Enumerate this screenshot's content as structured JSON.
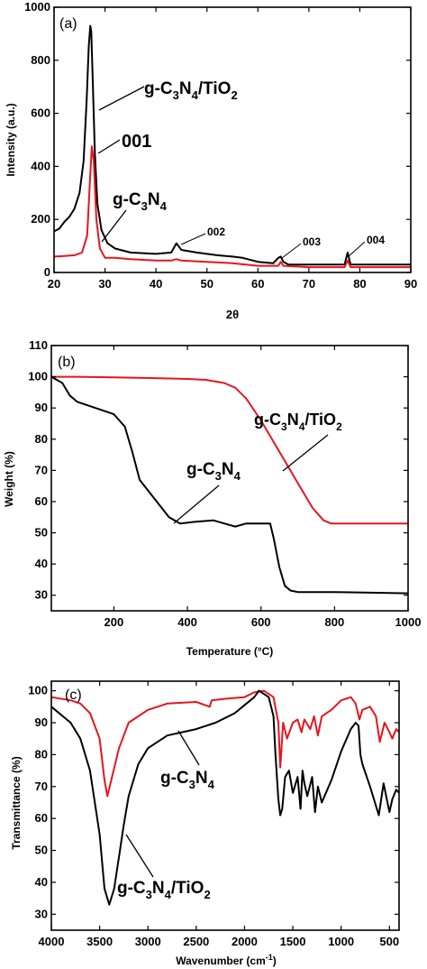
{
  "chart_data": [
    {
      "panel": "(a)",
      "type": "line",
      "xlabel": "2θ",
      "ylabel": "Intensity (a.u.)",
      "xlim": [
        20,
        90
      ],
      "ylim": [
        0,
        1000
      ],
      "xticks": [
        20,
        30,
        40,
        50,
        60,
        70,
        80,
        90
      ],
      "yticks": [
        0,
        200,
        400,
        600,
        800,
        1000
      ],
      "series": [
        {
          "name": "g-C3N4/TiO2",
          "color": "#000000",
          "x": [
            20,
            21,
            22,
            23,
            24,
            25,
            25.8,
            26.4,
            26.8,
            27.1,
            27.3,
            27.6,
            28.0,
            28.5,
            29.3,
            30.5,
            32,
            35,
            40,
            43,
            44,
            45,
            48,
            52,
            55,
            57,
            60,
            63,
            64,
            64.5,
            65,
            66,
            70,
            75,
            77,
            77.6,
            78.2,
            80,
            85,
            90
          ],
          "y": [
            155,
            165,
            190,
            210,
            240,
            300,
            420,
            650,
            850,
            930,
            910,
            720,
            450,
            260,
            160,
            110,
            90,
            75,
            70,
            75,
            110,
            85,
            75,
            65,
            60,
            55,
            40,
            35,
            55,
            60,
            40,
            30,
            30,
            30,
            30,
            75,
            30,
            30,
            30,
            30
          ]
        },
        {
          "name": "g-C3N4",
          "color": "#e8141e",
          "x": [
            20,
            22,
            24,
            25.5,
            26.5,
            27.0,
            27.4,
            27.8,
            28.3,
            29.0,
            30,
            32,
            35,
            40,
            43,
            44,
            45,
            50,
            55,
            60,
            64,
            64.5,
            65,
            70,
            77,
            77.6,
            78.2,
            80,
            85,
            90
          ],
          "y": [
            60,
            62,
            65,
            75,
            140,
            330,
            475,
            420,
            200,
            90,
            55,
            55,
            50,
            45,
            45,
            50,
            45,
            40,
            35,
            25,
            25,
            40,
            25,
            20,
            20,
            45,
            20,
            20,
            20,
            20
          ]
        }
      ],
      "annotations": [
        "g-C3N4/TiO2",
        "001",
        "g-C3N4",
        "002",
        "003",
        "004"
      ]
    },
    {
      "panel": "(b)",
      "type": "line",
      "xlabel": "Temperature (°C)",
      "ylabel": "Weight (%)",
      "xlim": [
        30,
        1000
      ],
      "ylim": [
        25,
        110
      ],
      "xticks": [
        200,
        400,
        600,
        800,
        1000
      ],
      "yticks": [
        30,
        40,
        50,
        60,
        70,
        80,
        90,
        100,
        110
      ],
      "series": [
        {
          "name": "g-C3N4/TiO2",
          "color": "#e8141e",
          "x": [
            30,
            100,
            200,
            300,
            400,
            450,
            500,
            530,
            560,
            600,
            650,
            700,
            740,
            770,
            790,
            800,
            850,
            900,
            1000
          ],
          "y": [
            100,
            100,
            99.8,
            99.6,
            99.3,
            99,
            98,
            96.5,
            93,
            86,
            76,
            66,
            58,
            54,
            53,
            53,
            53,
            53,
            53
          ]
        },
        {
          "name": "g-C3N4",
          "color": "#000000",
          "x": [
            30,
            60,
            80,
            100,
            150,
            200,
            230,
            250,
            270,
            290,
            310,
            330,
            350,
            380,
            420,
            470,
            500,
            530,
            560,
            600,
            625,
            635,
            650,
            665,
            680,
            700,
            800,
            900,
            1000
          ],
          "y": [
            100,
            98,
            94,
            92,
            90,
            88,
            84,
            76,
            67,
            64,
            61,
            58,
            55,
            53,
            53.5,
            54,
            53,
            52,
            53,
            53,
            53,
            48,
            39,
            33,
            31.5,
            31,
            31,
            30.8,
            30.6
          ]
        }
      ],
      "annotations": [
        "g-C3N4/TiO2",
        "g-C3N4"
      ]
    },
    {
      "panel": "(c)",
      "type": "line",
      "xlabel": "Wavenumber (cm-1)",
      "ylabel": "Transmittance (%)",
      "xlim": [
        4000,
        400
      ],
      "ylim": [
        25,
        103
      ],
      "xticks": [
        4000,
        3500,
        3000,
        2500,
        2000,
        1500,
        1000,
        500
      ],
      "yticks": [
        30,
        40,
        50,
        60,
        70,
        80,
        90,
        100
      ],
      "series": [
        {
          "name": "g-C3N4",
          "color": "#e8141e",
          "x": [
            4000,
            3800,
            3700,
            3600,
            3500,
            3450,
            3420,
            3380,
            3300,
            3200,
            3000,
            2800,
            2500,
            2360,
            2340,
            2200,
            2000,
            1900,
            1800,
            1700,
            1650,
            1630,
            1600,
            1560,
            1500,
            1450,
            1410,
            1380,
            1320,
            1280,
            1240,
            1200,
            1100,
            1000,
            900,
            850,
            810,
            780,
            700,
            640,
            600,
            550,
            500,
            470,
            430,
            400
          ],
          "y": [
            98,
            97,
            96,
            93,
            85,
            72,
            67,
            72,
            82,
            90,
            94,
            96,
            96.5,
            95,
            97,
            97.5,
            98,
            99.5,
            100,
            98,
            90,
            76,
            90,
            85,
            90,
            91,
            87,
            91,
            88,
            92,
            86,
            92,
            94,
            97,
            98,
            96,
            91,
            94,
            95,
            92,
            84,
            90,
            87,
            85,
            88,
            87
          ]
        },
        {
          "name": "g-C3N4/TiO2",
          "color": "#000000",
          "x": [
            4000,
            3800,
            3700,
            3600,
            3500,
            3450,
            3400,
            3350,
            3300,
            3250,
            3200,
            3100,
            3000,
            2800,
            2500,
            2300,
            2100,
            1900,
            1850,
            1750,
            1700,
            1680,
            1650,
            1630,
            1610,
            1580,
            1540,
            1500,
            1450,
            1420,
            1400,
            1380,
            1350,
            1300,
            1270,
            1240,
            1200,
            1100,
            1000,
            900,
            850,
            820,
            800,
            780,
            700,
            650,
            610,
            560,
            500,
            470,
            430,
            400
          ],
          "y": [
            95,
            90,
            85,
            75,
            55,
            38,
            33,
            38,
            48,
            58,
            67,
            77,
            82,
            86,
            88,
            90,
            93,
            98,
            100,
            98,
            92,
            80,
            66,
            61,
            63,
            73,
            75,
            68,
            73,
            63,
            75,
            71,
            67,
            73,
            62,
            70,
            65,
            72,
            81,
            88,
            90,
            89,
            80,
            77,
            70,
            65,
            61,
            71,
            62,
            66,
            69,
            68
          ]
        }
      ],
      "annotations": [
        "g-C3N4",
        "g-C3N4/TiO2"
      ]
    }
  ]
}
